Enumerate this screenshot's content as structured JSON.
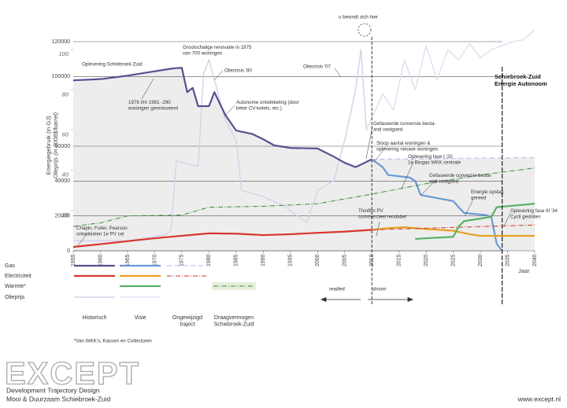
{
  "chart_data": {
    "type": "line",
    "xlim": [
      1955,
      2040
    ],
    "xticks": [
      1955,
      1960,
      1965,
      1970,
      1975,
      1980,
      1985,
      1990,
      1995,
      2000,
      2005,
      2010,
      2015,
      2020,
      2025,
      2030,
      2035,
      2040
    ],
    "ylim": [
      0,
      120000
    ],
    "yticks": [
      0,
      20000,
      40000,
      60000,
      100000,
      120000
    ],
    "y2lim": [
      0,
      104
    ],
    "y2ticks": [
      20,
      40,
      60,
      80,
      100
    ],
    "ylabel": "Energiegebruik (in GJ)",
    "y2label": "Olieprijs (in 2008$/barrel)",
    "xlabel": "Jaar",
    "grid": true,
    "markers": [
      2010,
      2034
    ],
    "legend_rows": [
      "Gas",
      "Electriciteit",
      "Warmte*",
      "Olieprijs"
    ],
    "legend_columns": [
      "Historisch",
      "Visie",
      "Ongewijzigd\ntraject",
      "Draagvermogen\nSchiebroek-Zuid"
    ],
    "series": [
      {
        "name": "Gas",
        "trajectory": "Historisch",
        "color": "#5b4f90",
        "width": 2.2,
        "dash": "",
        "fill": "#ededed",
        "x": [
          1955,
          1960,
          1965,
          1970,
          1973,
          1974,
          1975,
          1976,
          1977,
          1978,
          1980,
          1981,
          1983,
          1985,
          1988,
          1990,
          1992,
          1995,
          2000,
          2003,
          2005,
          2007,
          2010
        ],
        "values": [
          97800,
          98500,
          100500,
          103000,
          104500,
          104800,
          105000,
          91000,
          93500,
          83000,
          83000,
          91000,
          78000,
          69000,
          67000,
          64000,
          60500,
          59000,
          58700,
          54000,
          50500,
          48000,
          52500
        ]
      },
      {
        "name": "Gas",
        "trajectory": "Visie",
        "color": "#6a9ad6",
        "width": 2.2,
        "dash": "",
        "x": [
          2010,
          2012,
          2013,
          2017,
          2018,
          2019,
          2025,
          2026,
          2027,
          2031,
          2032,
          2033,
          2034
        ],
        "values": [
          52500,
          48000,
          43500,
          42000,
          40000,
          32000,
          28500,
          25000,
          21700,
          20500,
          19500,
          4000,
          0
        ]
      },
      {
        "name": "Gas",
        "trajectory": "Ongewijzigd\ntraject",
        "color": "#b8c6e6",
        "width": 1.2,
        "dash": "6 4",
        "fill": "#ededed",
        "x": [
          2010,
          2040
        ],
        "values": [
          52500,
          53500
        ]
      },
      {
        "name": "Electriciteit",
        "trajectory": "Historisch",
        "color": "#d7352c",
        "width": 2.2,
        "dash": "",
        "x": [
          1955,
          1960,
          1965,
          1970,
          1975,
          1980,
          1985,
          1990,
          1995,
          2000,
          2005,
          2010
        ],
        "values": [
          2200,
          3800,
          5500,
          7200,
          8600,
          10000,
          9800,
          9000,
          9500,
          10300,
          11000,
          12000
        ]
      },
      {
        "name": "Electriciteit",
        "trajectory": "Visie",
        "color": "#e8a020",
        "width": 2.2,
        "dash": "",
        "x": [
          2010,
          2013,
          2016,
          2020,
          2025,
          2028,
          2030,
          2040
        ],
        "values": [
          12000,
          13000,
          13500,
          12500,
          11500,
          9500,
          8600,
          8600
        ]
      },
      {
        "name": "Electriciteit",
        "trajectory": "Ongewijzigd\ntraject",
        "color": "#d7352c",
        "width": 1,
        "dash": "6 2 1 2",
        "x": [
          2010,
          2040
        ],
        "values": [
          12000,
          14800
        ]
      },
      {
        "name": "Warmte*",
        "trajectory": "Visie",
        "color": "#5ab066",
        "width": 2.2,
        "dash": "",
        "x": [
          2018,
          2020,
          2025,
          2026,
          2027,
          2030,
          2032,
          2033,
          2040
        ],
        "values": [
          6800,
          7200,
          8000,
          14000,
          17000,
          18500,
          19500,
          25000,
          27000
        ]
      },
      {
        "name": "Warmte*",
        "trajectory": "Draagvermogen\nSchiebroek-Zuid",
        "color": "#3a8a3a",
        "width": 1,
        "dash": "6 2 1 2",
        "x": [
          1955,
          1960,
          1965,
          1975,
          1980,
          1990,
          2000,
          2010,
          2020,
          2030,
          2040
        ],
        "values": [
          14000,
          16000,
          20000,
          20500,
          25000,
          25500,
          27000,
          32500,
          38500,
          43500,
          47500
        ]
      },
      {
        "name": "Olieprijs",
        "trajectory": "Historisch",
        "color": "#d6d3ea",
        "width": 1.5,
        "dash": "",
        "axis": "y2",
        "x": [
          1955,
          1965,
          1972,
          1973,
          1974,
          1975,
          1978,
          1979,
          1980,
          1981,
          1983,
          1985,
          1986,
          1990,
          1994,
          1998,
          2000,
          2003,
          2005,
          2007,
          2008,
          2009
        ],
        "values": [
          5,
          5,
          8,
          10,
          45,
          44,
          42,
          88,
          95,
          85,
          65,
          55,
          30,
          27,
          22,
          14,
          30,
          35,
          55,
          80,
          100,
          60
        ]
      },
      {
        "name": "Olieprijs",
        "trajectory": "Visie",
        "color": "#e2e0f0",
        "width": 1.5,
        "dash": "",
        "axis": "y2",
        "x": [
          2009,
          2012,
          2014,
          2016,
          2018,
          2020,
          2022,
          2024,
          2026,
          2028,
          2030,
          2032,
          2034,
          2036,
          2038,
          2040
        ],
        "values": [
          60,
          78,
          70,
          95,
          80,
          102,
          85,
          100,
          95,
          103,
          96,
          100,
          102,
          104,
          105,
          110
        ]
      }
    ],
    "annotations": [
      "Oplevering Schiebroek-Zuid",
      "Grootschalige renovatie in 1975\nvan 700 woningen",
      "Oliecrisis '80",
      "1976 t/m 1981 -290\nwoningen gerenoveerd",
      "Autonome ontwikkeling (door\nbeter CV-ketels, etc.)",
      "Oliecrisis '07",
      "u bevindt zich hier",
      "Gefaseerde conversie besta-\nand vastgoed",
      "Sloop aantal woningen &\noplevering nieuwe woningen",
      "Oplevering fase I '20\n1e Biogas WKK centrale",
      "Gefaseerde conversie besta-\nand vastgoed",
      "Energie opslag\ngereed",
      "Oplevering fase III '34\nCycli gesloten",
      "Thinfilm PV\ncommercieel rendabel",
      "Chapin, Fuller, Pearson\nontwikkelen 1e PV cel"
    ],
    "autonomy_label": "Schiebroek-Zuid\nEnergie Autonoom",
    "reality_label": "realiteit",
    "dream_label": "droom",
    "footnote": "*Van WKK's, Kassen en Collectoren"
  },
  "footer": {
    "logo": "EXCEPT",
    "line1": "Development Trajectory Design",
    "line2": "Mooi & Duurzaam Schiebroek-Zuid",
    "url": "www.except.nl"
  }
}
